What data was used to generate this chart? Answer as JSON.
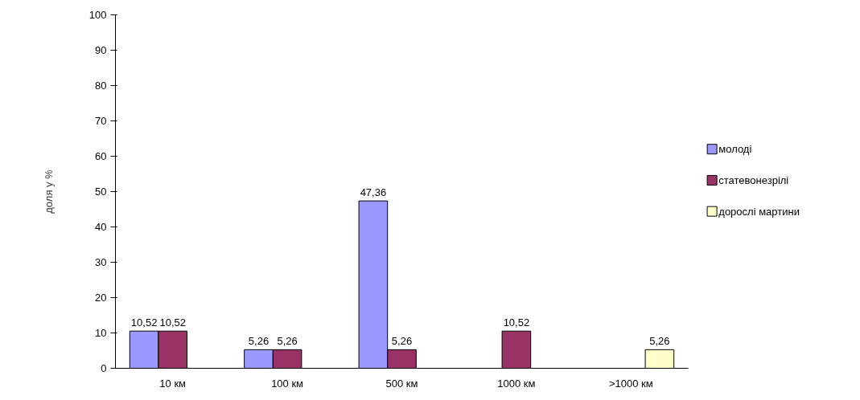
{
  "chart_data": {
    "type": "bar",
    "ylabel": "доля у %",
    "categories": [
      "10 км",
      "100 км",
      "500 км",
      "1000 км",
      ">1000 км"
    ],
    "series": [
      {
        "name": "молоді",
        "color": "#9999ff",
        "values": [
          10.52,
          5.26,
          47.36,
          null,
          null
        ],
        "value_labels": [
          "10,52",
          "5,26",
          "47,36",
          null,
          null
        ]
      },
      {
        "name": "статевонезрілі",
        "color": "#993366",
        "values": [
          10.52,
          5.26,
          5.26,
          10.52,
          null
        ],
        "value_labels": [
          "10,52",
          "5,26",
          "5,26",
          "10,52",
          null
        ]
      },
      {
        "name": "дорослі мартини",
        "color": "#ffffcc",
        "values": [
          null,
          null,
          null,
          null,
          5.26
        ],
        "value_labels": [
          null,
          null,
          null,
          null,
          "5,26"
        ]
      }
    ],
    "ylim": [
      0,
      100
    ],
    "yticks": [
      0,
      10,
      20,
      30,
      40,
      50,
      60,
      70,
      80,
      90,
      100
    ],
    "grid": false,
    "legend": "right"
  }
}
